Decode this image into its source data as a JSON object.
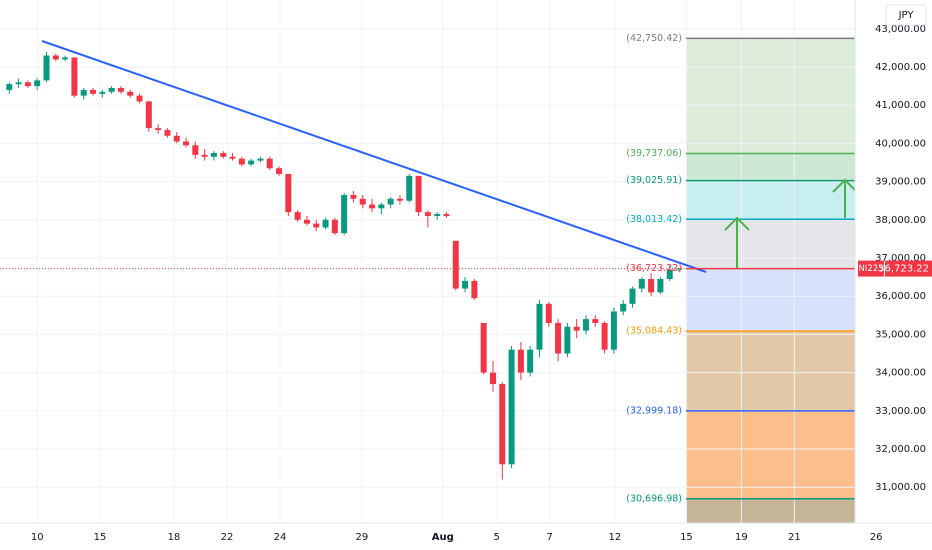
{
  "chart_data": {
    "type": "candlestick",
    "symbol": "NI225",
    "currency": "JPY",
    "last_price": {
      "value": 36723.22,
      "label": "36,723.22"
    },
    "up_color": "#089981",
    "down_color": "#f23645",
    "grid": true,
    "xlim": [
      -4,
      96.2
    ],
    "ylim": [
      30063,
      43754
    ],
    "xticks": [
      {
        "value": 0,
        "label": "10"
      },
      {
        "value": 6.75,
        "label": "15"
      },
      {
        "value": 14.7,
        "label": "18"
      },
      {
        "value": 20.4,
        "label": "22"
      },
      {
        "value": 26.1,
        "label": "24"
      },
      {
        "value": 34.9,
        "label": "29"
      },
      {
        "value": 43.6,
        "label": "Aug"
      },
      {
        "value": 49.4,
        "label": "5"
      },
      {
        "value": 55.1,
        "label": "7"
      },
      {
        "value": 62.1,
        "label": "12"
      },
      {
        "value": 69.8,
        "label": "15"
      },
      {
        "value": 75.7,
        "label": "19"
      },
      {
        "value": 81.4,
        "label": "21"
      },
      {
        "value": 90.2,
        "label": "26"
      }
    ],
    "yticks": [
      {
        "value": 43000,
        "label": "43,000.00"
      },
      {
        "value": 42000,
        "label": "42,000.00"
      },
      {
        "value": 41000,
        "label": "41,000.00"
      },
      {
        "value": 40000,
        "label": "40,000.00"
      },
      {
        "value": 39000,
        "label": "39,000.00"
      },
      {
        "value": 38000,
        "label": "38,000.00"
      },
      {
        "value": 37000,
        "label": "37,000.00"
      },
      {
        "value": 36000,
        "label": "36,000.00"
      },
      {
        "value": 35000,
        "label": "35,000.00"
      },
      {
        "value": 34000,
        "label": "34,000.00"
      },
      {
        "value": 33000,
        "label": "33,000.00"
      },
      {
        "value": 32000,
        "label": "32,000.00"
      },
      {
        "value": 31000,
        "label": "31,000.00"
      }
    ],
    "levels": [
      {
        "value": 42750.42,
        "label": "(42,750.42)",
        "color": "#787b86",
        "fill": "#dcecd8"
      },
      {
        "value": 39737.06,
        "label": "(39,737.06)",
        "color": "#4caf50",
        "fill": "#cde8d2"
      },
      {
        "value": 39025.91,
        "label": "(39,025.91)",
        "color": "#089981",
        "fill": "#c9eef0"
      },
      {
        "value": 38013.42,
        "label": "(38,013.42)",
        "color": "#00acc1",
        "fill": "#e4e5e8"
      },
      {
        "value": 36723.22,
        "label": "(36,723.22)",
        "color": "#f23645",
        "fill": "#d6e2fb"
      },
      {
        "value": 35084.43,
        "label": "(35,084.43)",
        "color": "#ff9800",
        "fill": "#e2c8a6"
      },
      {
        "value": 32999.18,
        "label": "(32,999.18)",
        "color": "#2962ff",
        "fill": "#fcbf8c"
      },
      {
        "value": 30696.98,
        "label": "(30,696.98)",
        "color": "#089981",
        "fill": "#c6b596"
      }
    ],
    "x": [
      -3,
      -2,
      -1,
      0,
      1,
      2,
      3,
      4,
      5,
      6,
      7,
      8,
      9,
      10,
      11,
      12,
      13,
      14,
      15,
      16,
      17,
      18,
      19,
      20,
      21,
      22,
      23,
      24,
      25,
      26,
      27,
      28,
      29,
      30,
      31,
      32,
      33,
      34,
      35,
      36,
      37,
      38,
      39,
      40,
      41,
      42,
      43,
      44,
      45,
      46,
      47,
      48,
      49,
      50,
      51,
      52,
      53,
      54,
      55,
      56,
      57,
      58,
      59,
      60,
      61,
      62,
      63,
      64,
      65,
      66,
      67,
      68,
      69
    ],
    "open": [
      41400,
      41550,
      41600,
      41500,
      41650,
      42300,
      42200,
      42250,
      41250,
      41400,
      41300,
      41350,
      41450,
      41350,
      41250,
      41100,
      40400,
      40350,
      40200,
      40050,
      39950,
      39700,
      39650,
      39750,
      39650,
      39600,
      39450,
      39550,
      39600,
      39350,
      39200,
      38200,
      38000,
      37900,
      37800,
      38000,
      37650,
      38650,
      38550,
      38400,
      38300,
      38400,
      38550,
      38500,
      39150,
      38200,
      38100,
      38150,
      37450,
      36200,
      36400,
      35300,
      34000,
      33700,
      31600,
      34600,
      34000,
      34600,
      35800,
      35300,
      34500,
      35200,
      35100,
      35400,
      35300,
      34600,
      35600,
      35800,
      36200,
      36450,
      36100,
      36450,
      36700
    ],
    "high": [
      41600,
      41700,
      41650,
      41700,
      42400,
      42350,
      42300,
      42250,
      41450,
      41450,
      41400,
      41500,
      41500,
      41400,
      41300,
      41100,
      40500,
      40400,
      40300,
      40150,
      40050,
      39850,
      39800,
      39800,
      39750,
      39650,
      39600,
      39650,
      39650,
      39400,
      39200,
      38250,
      38100,
      38000,
      38050,
      38050,
      38700,
      38750,
      38650,
      38550,
      38450,
      38600,
      38650,
      39200,
      39150,
      38250,
      38200,
      38200,
      37450,
      36500,
      36450,
      35300,
      34300,
      33750,
      34700,
      34800,
      34700,
      35900,
      35850,
      35400,
      35300,
      35400,
      35500,
      35500,
      35350,
      35700,
      35900,
      36250,
      36500,
      36600,
      36500,
      36800,
      36750
    ],
    "low": [
      41300,
      41450,
      41450,
      41400,
      41600,
      42150,
      42150,
      41200,
      41150,
      41250,
      41200,
      41300,
      41300,
      41200,
      41050,
      40300,
      40250,
      40150,
      40000,
      39900,
      39600,
      39550,
      39550,
      39600,
      39550,
      39400,
      39400,
      39500,
      39300,
      39150,
      38100,
      37950,
      37850,
      37700,
      37750,
      37600,
      37600,
      38450,
      38300,
      38200,
      38150,
      38300,
      38400,
      38450,
      38100,
      37800,
      38000,
      38050,
      36150,
      36100,
      35900,
      33950,
      33500,
      31200,
      31500,
      33800,
      33900,
      34400,
      35200,
      34300,
      34400,
      34900,
      35000,
      35200,
      34500,
      34500,
      35500,
      35700,
      36100,
      36000,
      36050,
      36400,
      36650
    ],
    "close": [
      41550,
      41600,
      41500,
      41650,
      42300,
      42200,
      42250,
      41250,
      41400,
      41300,
      41350,
      41450,
      41350,
      41250,
      41100,
      40400,
      40350,
      40200,
      40050,
      39950,
      39700,
      39650,
      39750,
      39650,
      39600,
      39450,
      39550,
      39600,
      39350,
      39200,
      38200,
      38000,
      37900,
      37800,
      38000,
      37650,
      38650,
      38550,
      38400,
      38300,
      38400,
      38550,
      38500,
      39150,
      38200,
      38100,
      38150,
      38100,
      36200,
      36400,
      35950,
      34000,
      33700,
      31600,
      34600,
      34000,
      34600,
      35800,
      35300,
      34500,
      35200,
      35100,
      35400,
      35300,
      34600,
      35600,
      35800,
      36200,
      36450,
      36100,
      36450,
      36700,
      36723.22
    ]
  }
}
